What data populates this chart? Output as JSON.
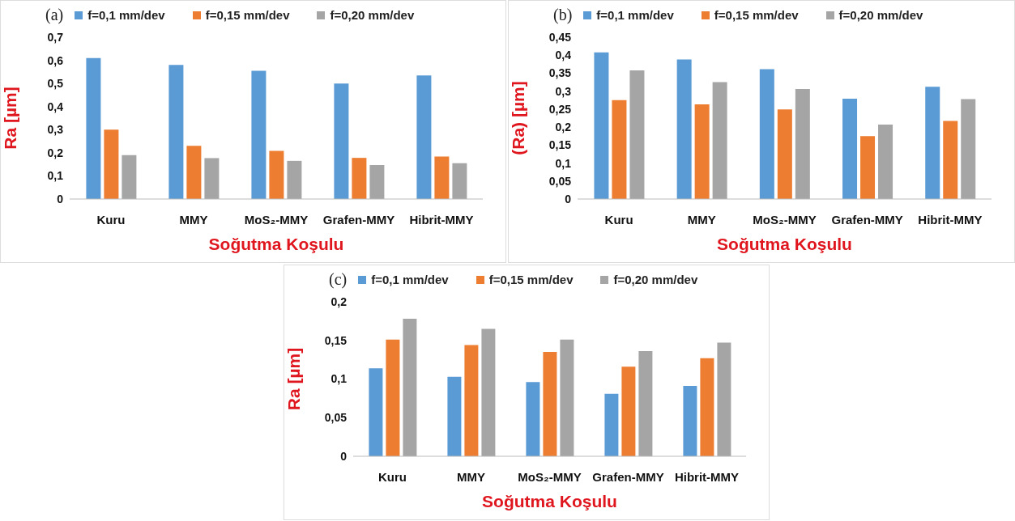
{
  "chart_data": [
    {
      "type": "bar",
      "title": "(a)",
      "xlabel": "Soğutma Koşulu",
      "ylabel": "Ra [µm]",
      "categories": [
        "Kuru",
        "MMY",
        "MoS₂-MMY",
        "Grafen-MMY",
        "Hibrit-MMY"
      ],
      "series": [
        {
          "name": "f=0,1 mm/dev",
          "color": "#5b9bd5",
          "values": [
            0.61,
            0.58,
            0.555,
            0.5,
            0.535
          ]
        },
        {
          "name": "f=0,15 mm/dev",
          "color": "#ed7d31",
          "values": [
            0.3,
            0.23,
            0.208,
            0.178,
            0.184
          ]
        },
        {
          "name": "f=0,20 mm/dev",
          "color": "#a5a5a5",
          "values": [
            0.19,
            0.177,
            0.165,
            0.147,
            0.155
          ]
        }
      ],
      "ylim": [
        0,
        0.7
      ],
      "yticks": [
        {
          "value": 0,
          "label": "0"
        },
        {
          "value": 0.1,
          "label": "0,1"
        },
        {
          "value": 0.2,
          "label": "0,2"
        },
        {
          "value": 0.3,
          "label": "0,3"
        },
        {
          "value": 0.4,
          "label": "0,4"
        },
        {
          "value": 0.5,
          "label": "0,5"
        },
        {
          "value": 0.6,
          "label": "0,6"
        },
        {
          "value": 0.7,
          "label": "0,7"
        }
      ],
      "grid": false,
      "legend": "top"
    },
    {
      "type": "bar",
      "title": "(b)",
      "xlabel": "Soğutma Koşulu",
      "ylabel": "(Ra) [µm]",
      "categories": [
        "Kuru",
        "MMY",
        "MoS₂-MMY",
        "Grafen-MMY",
        "Hibrit-MMY"
      ],
      "series": [
        {
          "name": "f=0,1 mm/dev",
          "color": "#5b9bd5",
          "values": [
            0.408,
            0.388,
            0.361,
            0.279,
            0.312
          ]
        },
        {
          "name": "f=0,15 mm/dev",
          "color": "#ed7d31",
          "values": [
            0.275,
            0.263,
            0.249,
            0.175,
            0.217
          ]
        },
        {
          "name": "f=0,20 mm/dev",
          "color": "#a5a5a5",
          "values": [
            0.358,
            0.325,
            0.306,
            0.207,
            0.278
          ]
        }
      ],
      "ylim": [
        0,
        0.45
      ],
      "yticks": [
        {
          "value": 0,
          "label": "0"
        },
        {
          "value": 0.05,
          "label": "0,05"
        },
        {
          "value": 0.1,
          "label": "0,1"
        },
        {
          "value": 0.15,
          "label": "0,15"
        },
        {
          "value": 0.2,
          "label": "0,2"
        },
        {
          "value": 0.25,
          "label": "0,25"
        },
        {
          "value": 0.3,
          "label": "0,3"
        },
        {
          "value": 0.35,
          "label": "0,35"
        },
        {
          "value": 0.4,
          "label": "0,4"
        },
        {
          "value": 0.45,
          "label": "0,45"
        }
      ],
      "grid": false,
      "legend": "top"
    },
    {
      "type": "bar",
      "title": "(c)",
      "xlabel": "Soğutma Koşulu",
      "ylabel": "Ra [µm]",
      "categories": [
        "Kuru",
        "MMY",
        "MoS₂-MMY",
        "Grafen-MMY",
        "Hibrit-MMY"
      ],
      "series": [
        {
          "name": "f=0,1 mm/dev",
          "color": "#5b9bd5",
          "values": [
            0.114,
            0.103,
            0.096,
            0.081,
            0.091
          ]
        },
        {
          "name": "f=0,15 mm/dev",
          "color": "#ed7d31",
          "values": [
            0.151,
            0.144,
            0.135,
            0.116,
            0.127
          ]
        },
        {
          "name": "f=0,20 mm/dev",
          "color": "#a5a5a5",
          "values": [
            0.178,
            0.165,
            0.151,
            0.136,
            0.147
          ]
        }
      ],
      "ylim": [
        0,
        0.2
      ],
      "yticks": [
        {
          "value": 0,
          "label": "0"
        },
        {
          "value": 0.05,
          "label": "0,05"
        },
        {
          "value": 0.1,
          "label": "0,1"
        },
        {
          "value": 0.15,
          "label": "0,15"
        },
        {
          "value": 0.2,
          "label": "0,2"
        }
      ],
      "grid": false,
      "legend": "top"
    }
  ]
}
